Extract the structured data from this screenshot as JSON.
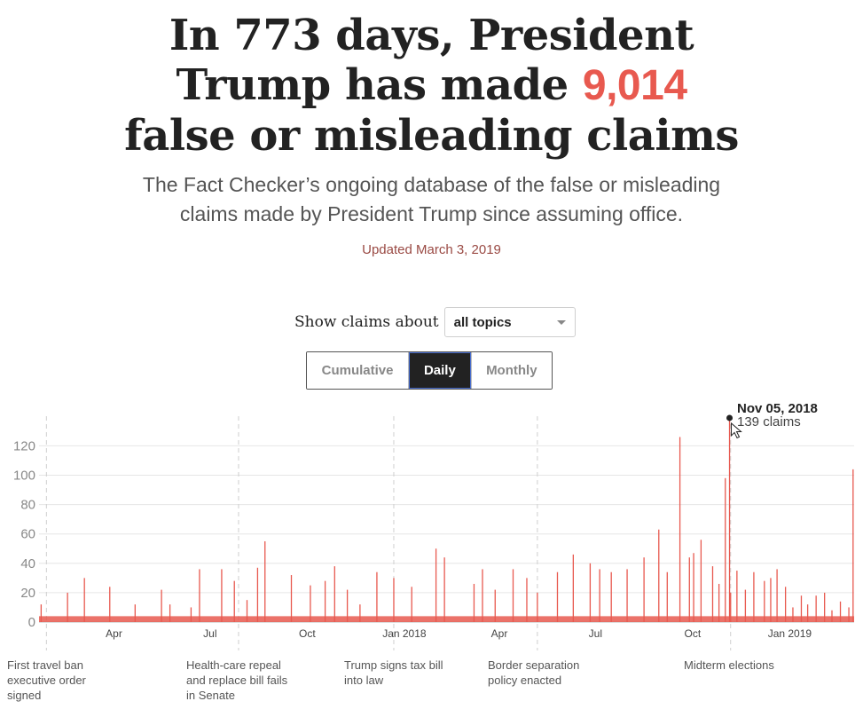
{
  "headline": {
    "line1": "In 773 days, President",
    "line2_before": "Trump has made ",
    "count": "9,014",
    "line3": "false or misleading claims",
    "highlight_color": "#e8594f"
  },
  "subhead": {
    "line1": "The Fact Checker’s ongoing database of the false or misleading",
    "line2": "claims made by President Trump since assuming office."
  },
  "updated": "Updated March 3, 2019",
  "filter": {
    "label": "Show claims about",
    "selected": "all topics"
  },
  "view_toggle": {
    "options": [
      "Cumulative",
      "Daily",
      "Monthly"
    ],
    "active": "Daily"
  },
  "tooltip": {
    "date": "Nov 05, 2018",
    "value_text": "139 claims"
  },
  "events": [
    {
      "lines": [
        "First travel ban",
        "executive order",
        "signed"
      ]
    },
    {
      "lines": [
        "Health-care repeal",
        "and replace bill fails",
        "in Senate"
      ]
    },
    {
      "lines": [
        "Trump signs tax bill",
        "into law"
      ]
    },
    {
      "lines": [
        "Border separation",
        "policy enacted"
      ]
    },
    {
      "lines": [
        "Midterm elections"
      ]
    }
  ],
  "chart_data": {
    "type": "bar",
    "x_start": "2017-01-20",
    "x_end": "2019-03-03",
    "y_ticks": [
      0,
      20,
      40,
      60,
      80,
      100,
      120
    ],
    "ylim": [
      0,
      140
    ],
    "x_ticks": [
      {
        "date": "2017-04-01",
        "label": "Apr"
      },
      {
        "date": "2017-07-01",
        "label": "Jul"
      },
      {
        "date": "2017-10-01",
        "label": "Oct"
      },
      {
        "date": "2018-01-01",
        "label": "Jan 2018"
      },
      {
        "date": "2018-04-01",
        "label": "Apr"
      },
      {
        "date": "2018-07-01",
        "label": "Jul"
      },
      {
        "date": "2018-10-01",
        "label": "Oct"
      },
      {
        "date": "2019-01-01",
        "label": "Jan 2019"
      }
    ],
    "event_dates": [
      "2017-01-27",
      "2017-07-28",
      "2017-12-22",
      "2018-05-07",
      "2018-11-06"
    ],
    "highlight": {
      "date": "2018-11-05",
      "value": 139
    },
    "series": [
      {
        "color": "#e8594f",
        "points": [
          [
            "2017-01-22",
            12
          ],
          [
            "2017-02-16",
            20
          ],
          [
            "2017-03-04",
            30
          ],
          [
            "2017-03-28",
            24
          ],
          [
            "2017-04-21",
            12
          ],
          [
            "2017-05-16",
            22
          ],
          [
            "2017-05-24",
            12
          ],
          [
            "2017-06-13",
            10
          ],
          [
            "2017-06-21",
            36
          ],
          [
            "2017-07-12",
            36
          ],
          [
            "2017-07-24",
            28
          ],
          [
            "2017-08-05",
            15
          ],
          [
            "2017-08-15",
            37
          ],
          [
            "2017-08-22",
            55
          ],
          [
            "2017-09-16",
            32
          ],
          [
            "2017-10-04",
            25
          ],
          [
            "2017-10-18",
            28
          ],
          [
            "2017-10-27",
            38
          ],
          [
            "2017-11-08",
            22
          ],
          [
            "2017-11-20",
            12
          ],
          [
            "2017-12-06",
            34
          ],
          [
            "2017-12-22",
            30
          ],
          [
            "2018-01-08",
            24
          ],
          [
            "2018-01-31",
            50
          ],
          [
            "2018-02-08",
            44
          ],
          [
            "2018-03-08",
            26
          ],
          [
            "2018-03-16",
            36
          ],
          [
            "2018-03-28",
            22
          ],
          [
            "2018-04-14",
            36
          ],
          [
            "2018-04-27",
            30
          ],
          [
            "2018-05-07",
            20
          ],
          [
            "2018-05-26",
            34
          ],
          [
            "2018-06-10",
            46
          ],
          [
            "2018-06-26",
            40
          ],
          [
            "2018-07-05",
            36
          ],
          [
            "2018-07-16",
            34
          ],
          [
            "2018-07-31",
            36
          ],
          [
            "2018-08-16",
            44
          ],
          [
            "2018-08-30",
            63
          ],
          [
            "2018-09-07",
            34
          ],
          [
            "2018-09-19",
            126
          ],
          [
            "2018-09-28",
            44
          ],
          [
            "2018-10-02",
            47
          ],
          [
            "2018-10-09",
            56
          ],
          [
            "2018-10-20",
            38
          ],
          [
            "2018-10-26",
            26
          ],
          [
            "2018-11-01",
            98
          ],
          [
            "2018-11-05",
            139
          ],
          [
            "2018-11-06",
            20
          ],
          [
            "2018-11-12",
            35
          ],
          [
            "2018-11-20",
            22
          ],
          [
            "2018-11-28",
            34
          ],
          [
            "2018-12-08",
            28
          ],
          [
            "2018-12-14",
            30
          ],
          [
            "2018-12-20",
            36
          ],
          [
            "2018-12-28",
            24
          ],
          [
            "2019-01-04",
            10
          ],
          [
            "2019-01-12",
            18
          ],
          [
            "2019-01-18",
            12
          ],
          [
            "2019-01-26",
            18
          ],
          [
            "2019-02-03",
            20
          ],
          [
            "2019-02-10",
            8
          ],
          [
            "2019-02-18",
            14
          ],
          [
            "2019-02-26",
            10
          ],
          [
            "2019-03-02",
            104
          ]
        ]
      }
    ]
  }
}
